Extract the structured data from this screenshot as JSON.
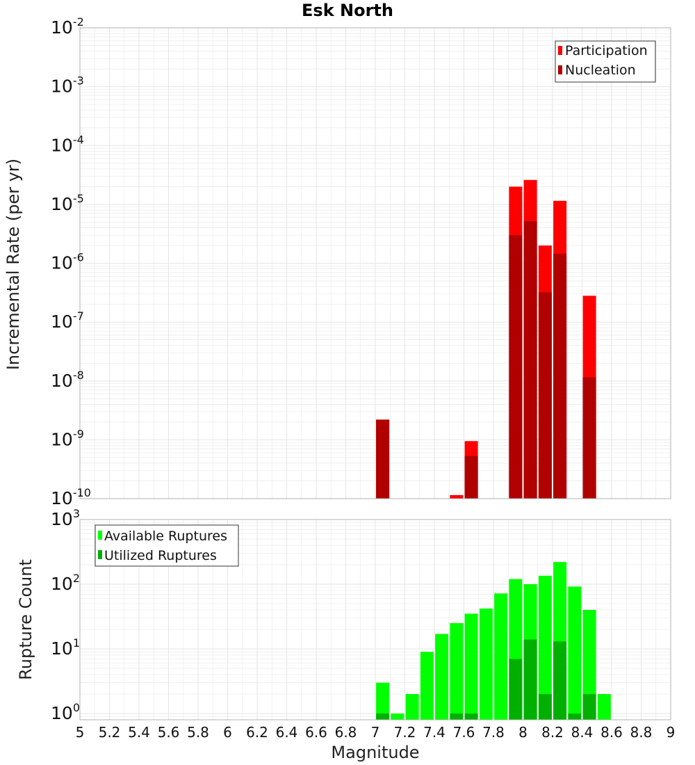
{
  "title": "Esk North",
  "colors": {
    "participation": "#ff0000",
    "nucleation": "#b00000",
    "available": "#00ff00",
    "utilized": "#00b000",
    "grid": "#e6e6e6",
    "frame": "#b0b0b0"
  },
  "chart_data": [
    {
      "type": "bar",
      "panel": "top",
      "title": "Esk North",
      "xlabel": "Magnitude",
      "ylabel": "Incremental Rate (per yr)",
      "yscale": "log",
      "xlim": [
        5,
        9
      ],
      "ylim": [
        1e-10,
        0.01
      ],
      "y_tick_exponents": [
        -10,
        -9,
        -8,
        -7,
        -6,
        -5,
        -4,
        -3,
        -2
      ],
      "legend": {
        "position": "top-right",
        "entries": [
          "Participation",
          "Nucleation"
        ]
      },
      "x": [
        7.05,
        7.55,
        7.65,
        7.95,
        8.05,
        8.15,
        8.25,
        8.45
      ],
      "series": [
        {
          "name": "Participation",
          "color": "participation",
          "values": [
            2.2e-09,
            1.15e-10,
            9.5e-10,
            2e-05,
            2.6e-05,
            2e-06,
            1.15e-05,
            2.8e-07
          ]
        },
        {
          "name": "Nucleation",
          "color": "nucleation",
          "values": [
            2.2e-09,
            null,
            5.3e-10,
            3e-06,
            5.2e-06,
            3.2e-07,
            1.45e-06,
            1.15e-08
          ]
        }
      ],
      "grid": true
    },
    {
      "type": "bar",
      "panel": "bottom",
      "xlabel": "Magnitude",
      "ylabel": "Rupture Count",
      "yscale": "log",
      "xlim": [
        5,
        9
      ],
      "ylim": [
        0.8,
        1000
      ],
      "y_tick_exponents": [
        0,
        1,
        2,
        3
      ],
      "x_ticks": [
        "5",
        "5.2",
        "5.4",
        "5.6",
        "5.8",
        "6",
        "6.2",
        "6.4",
        "6.6",
        "6.8",
        "7",
        "7.2",
        "7.4",
        "7.6",
        "7.8",
        "8",
        "8.2",
        "8.4",
        "8.6",
        "8.8",
        "9"
      ],
      "legend": {
        "position": "top-left",
        "entries": [
          "Available Ruptures",
          "Utilized Ruptures"
        ]
      },
      "x": [
        7.05,
        7.15,
        7.25,
        7.35,
        7.45,
        7.55,
        7.65,
        7.75,
        7.85,
        7.95,
        8.05,
        8.15,
        8.25,
        8.35,
        8.45,
        8.55
      ],
      "series": [
        {
          "name": "Available Ruptures",
          "color": "available",
          "values": [
            3,
            1,
            2,
            9,
            17,
            25,
            35,
            42,
            72,
            120,
            100,
            135,
            220,
            92,
            40,
            2
          ]
        },
        {
          "name": "Utilized Ruptures",
          "color": "utilized",
          "values": [
            1,
            null,
            null,
            null,
            null,
            1,
            1,
            null,
            null,
            7,
            14,
            2,
            13,
            1,
            2,
            null
          ]
        }
      ],
      "grid": true
    }
  ]
}
